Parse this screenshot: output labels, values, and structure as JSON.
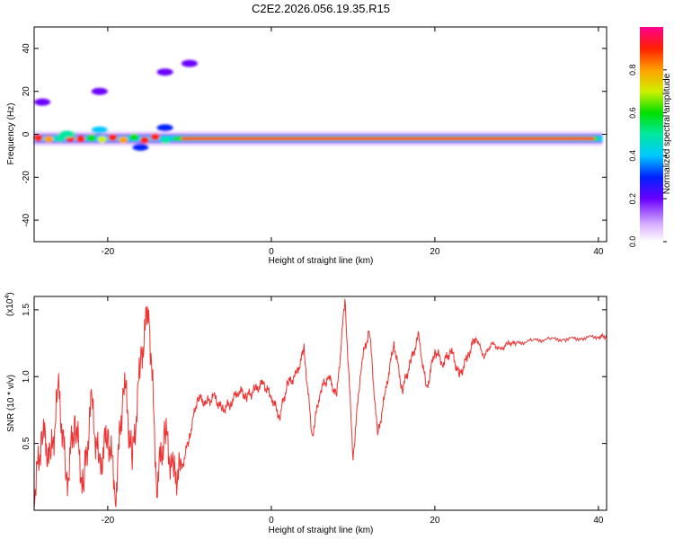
{
  "title": "C2E2.2026.056.19.35.R15",
  "chart_data": [
    {
      "type": "heatmap",
      "name": "spectrogram",
      "xlabel": "Height of straight line (km)",
      "ylabel": "Frequency (Hz)",
      "xlim": [
        -29,
        41
      ],
      "ylim": [
        -50,
        50
      ],
      "xticks": [
        -20,
        0,
        20,
        40
      ],
      "yticks": [
        -40,
        -20,
        0,
        20,
        40
      ],
      "colorbar": {
        "label": "Normalized spectral amplitude",
        "range": [
          0,
          1
        ],
        "ticks": [
          0,
          0.2,
          0.4,
          0.6,
          0.8
        ]
      },
      "band_center_hz": -2,
      "blobs": [
        {
          "x": -28,
          "y": 15,
          "v": 0.18
        },
        {
          "x": -21,
          "y": 20,
          "v": 0.12
        },
        {
          "x": -13,
          "y": 29,
          "v": 0.14
        },
        {
          "x": -10,
          "y": 33,
          "v": 0.12
        },
        {
          "x": -25,
          "y": 0,
          "v": 0.45
        },
        {
          "x": -21,
          "y": 2,
          "v": 0.35
        },
        {
          "x": -16,
          "y": -6,
          "v": 0.25
        },
        {
          "x": -13,
          "y": 3,
          "v": 0.22
        }
      ]
    },
    {
      "type": "line",
      "name": "snr",
      "xlabel": "Height of straight line (km)",
      "ylabel": "SNR (10 * v/v)",
      "scale_label": "(x10",
      "scale_exp": "4",
      "xlim": [
        -29,
        41
      ],
      "ylim": [
        0,
        1.6
      ],
      "xticks": [
        -20,
        0,
        20,
        40
      ],
      "yticks": [
        0.5,
        1.0,
        1.5
      ],
      "line_color": "#ee3333",
      "series": [
        {
          "x": -29,
          "y": 0.1
        },
        {
          "x": -28,
          "y": 0.6
        },
        {
          "x": -27,
          "y": 0.35
        },
        {
          "x": -26,
          "y": 0.9
        },
        {
          "x": -25,
          "y": 0.2
        },
        {
          "x": -24,
          "y": 0.7
        },
        {
          "x": -23,
          "y": 0.15
        },
        {
          "x": -22,
          "y": 0.8
        },
        {
          "x": -21,
          "y": 0.3
        },
        {
          "x": -20,
          "y": 0.6
        },
        {
          "x": -19,
          "y": 0.15
        },
        {
          "x": -18,
          "y": 1.0
        },
        {
          "x": -17,
          "y": 0.35
        },
        {
          "x": -16,
          "y": 1.1
        },
        {
          "x": -15,
          "y": 1.55
        },
        {
          "x": -14,
          "y": 0.2
        },
        {
          "x": -13,
          "y": 0.6
        },
        {
          "x": -12,
          "y": 0.25
        },
        {
          "x": -11,
          "y": 0.3
        },
        {
          "x": -10,
          "y": 0.55
        },
        {
          "x": -9,
          "y": 0.85
        },
        {
          "x": -8,
          "y": 0.8
        },
        {
          "x": -7,
          "y": 0.85
        },
        {
          "x": -6,
          "y": 0.75
        },
        {
          "x": -5,
          "y": 0.8
        },
        {
          "x": -4,
          "y": 0.9
        },
        {
          "x": -3,
          "y": 0.85
        },
        {
          "x": -2,
          "y": 0.9
        },
        {
          "x": -1,
          "y": 0.95
        },
        {
          "x": 0,
          "y": 0.85
        },
        {
          "x": 1,
          "y": 0.7
        },
        {
          "x": 2,
          "y": 0.95
        },
        {
          "x": 3,
          "y": 1.0
        },
        {
          "x": 4,
          "y": 1.2
        },
        {
          "x": 5,
          "y": 0.55
        },
        {
          "x": 6,
          "y": 0.9
        },
        {
          "x": 7,
          "y": 1.0
        },
        {
          "x": 8,
          "y": 0.85
        },
        {
          "x": 9,
          "y": 1.58
        },
        {
          "x": 10,
          "y": 0.4
        },
        {
          "x": 11,
          "y": 1.1
        },
        {
          "x": 12,
          "y": 1.35
        },
        {
          "x": 13,
          "y": 0.55
        },
        {
          "x": 14,
          "y": 0.9
        },
        {
          "x": 15,
          "y": 1.25
        },
        {
          "x": 16,
          "y": 0.9
        },
        {
          "x": 17,
          "y": 1.1
        },
        {
          "x": 18,
          "y": 1.3
        },
        {
          "x": 19,
          "y": 0.9
        },
        {
          "x": 20,
          "y": 1.2
        },
        {
          "x": 21,
          "y": 1.1
        },
        {
          "x": 22,
          "y": 1.2
        },
        {
          "x": 23,
          "y": 1.0
        },
        {
          "x": 24,
          "y": 1.15
        },
        {
          "x": 25,
          "y": 1.3
        },
        {
          "x": 26,
          "y": 1.15
        },
        {
          "x": 27,
          "y": 1.25
        },
        {
          "x": 28,
          "y": 1.2
        },
        {
          "x": 29,
          "y": 1.25
        },
        {
          "x": 30,
          "y": 1.25
        },
        {
          "x": 32,
          "y": 1.27
        },
        {
          "x": 34,
          "y": 1.28
        },
        {
          "x": 36,
          "y": 1.28
        },
        {
          "x": 38,
          "y": 1.29
        },
        {
          "x": 40,
          "y": 1.3
        },
        {
          "x": 41,
          "y": 1.3
        }
      ]
    }
  ]
}
